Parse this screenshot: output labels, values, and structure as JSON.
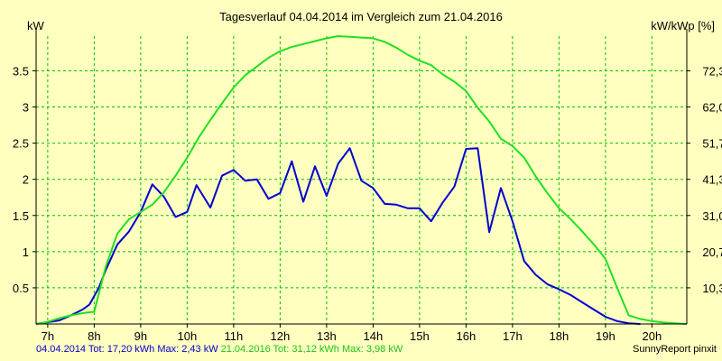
{
  "chart_data": {
    "type": "line",
    "title": "Tagesverlauf 04.04.2014 im Vergleich zum 21.04.2016",
    "ylabel_left": "kW",
    "ylabel_right": "kW/kWp [%]",
    "x_ticks": [
      "7h",
      "8h",
      "9h",
      "10h",
      "11h",
      "12h",
      "13h",
      "14h",
      "15h",
      "16h",
      "17h",
      "18h",
      "19h",
      "20h"
    ],
    "x_tick_values": [
      7,
      8,
      9,
      10,
      11,
      12,
      13,
      14,
      15,
      16,
      17,
      18,
      19,
      20
    ],
    "xlim": [
      6.75,
      20.75
    ],
    "y_left_ticks": [
      "0.5",
      "1",
      "1.5",
      "2",
      "2.5",
      "3",
      "3.5"
    ],
    "y_left_tick_values": [
      0.5,
      1,
      1.5,
      2,
      2.5,
      3,
      3.5
    ],
    "ylim": [
      0,
      3.98
    ],
    "y_right_ticks": [
      "10,3",
      "20,7",
      "31,0",
      "41,3",
      "51,7",
      "62,0",
      "72,3"
    ],
    "grid": true,
    "colors": {
      "background": "#FFFFC0",
      "grid": "#00C000",
      "series_2014": "#0000D0",
      "series_2016": "#20E020"
    },
    "series": [
      {
        "name": "04.04.2014",
        "color": "#0000D0",
        "points": [
          [
            6.75,
            0
          ],
          [
            7.25,
            0.05
          ],
          [
            7.5,
            0.12
          ],
          [
            7.75,
            0.2
          ],
          [
            7.9,
            0.27
          ],
          [
            8.1,
            0.5
          ],
          [
            8.25,
            0.75
          ],
          [
            8.5,
            1.1
          ],
          [
            8.75,
            1.28
          ],
          [
            9.0,
            1.55
          ],
          [
            9.25,
            1.93
          ],
          [
            9.5,
            1.76
          ],
          [
            9.75,
            1.48
          ],
          [
            10.0,
            1.55
          ],
          [
            10.2,
            1.92
          ],
          [
            10.5,
            1.61
          ],
          [
            10.75,
            2.05
          ],
          [
            11.0,
            2.13
          ],
          [
            11.25,
            1.98
          ],
          [
            11.5,
            2.0
          ],
          [
            11.75,
            1.73
          ],
          [
            12.0,
            1.81
          ],
          [
            12.25,
            2.25
          ],
          [
            12.5,
            1.69
          ],
          [
            12.75,
            2.18
          ],
          [
            13.0,
            1.77
          ],
          [
            13.25,
            2.22
          ],
          [
            13.5,
            2.43
          ],
          [
            13.75,
            1.98
          ],
          [
            14.0,
            1.88
          ],
          [
            14.25,
            1.66
          ],
          [
            14.5,
            1.65
          ],
          [
            14.75,
            1.6
          ],
          [
            15.0,
            1.6
          ],
          [
            15.25,
            1.42
          ],
          [
            15.5,
            1.68
          ],
          [
            15.75,
            1.9
          ],
          [
            16.0,
            2.42
          ],
          [
            16.25,
            2.43
          ],
          [
            16.5,
            1.27
          ],
          [
            16.75,
            1.88
          ],
          [
            17.0,
            1.42
          ],
          [
            17.25,
            0.87
          ],
          [
            17.5,
            0.68
          ],
          [
            17.75,
            0.55
          ],
          [
            18.0,
            0.48
          ],
          [
            18.25,
            0.4
          ],
          [
            18.5,
            0.3
          ],
          [
            18.75,
            0.2
          ],
          [
            19.0,
            0.1
          ],
          [
            19.25,
            0.04
          ],
          [
            19.5,
            0.01
          ],
          [
            19.75,
            0
          ]
        ]
      },
      {
        "name": "21.04.2016",
        "color": "#20E020",
        "points": [
          [
            6.75,
            0
          ],
          [
            7.0,
            0.03
          ],
          [
            7.25,
            0.08
          ],
          [
            7.5,
            0.12
          ],
          [
            7.75,
            0.15
          ],
          [
            8.0,
            0.17
          ],
          [
            8.25,
            0.8
          ],
          [
            8.5,
            1.25
          ],
          [
            8.75,
            1.45
          ],
          [
            9.0,
            1.55
          ],
          [
            9.25,
            1.65
          ],
          [
            9.5,
            1.82
          ],
          [
            9.75,
            2.05
          ],
          [
            10.0,
            2.3
          ],
          [
            10.25,
            2.58
          ],
          [
            10.5,
            2.82
          ],
          [
            10.75,
            3.05
          ],
          [
            11.0,
            3.27
          ],
          [
            11.25,
            3.44
          ],
          [
            11.5,
            3.56
          ],
          [
            11.75,
            3.68
          ],
          [
            12.0,
            3.77
          ],
          [
            12.25,
            3.83
          ],
          [
            12.5,
            3.87
          ],
          [
            12.75,
            3.91
          ],
          [
            13.0,
            3.95
          ],
          [
            13.25,
            3.98
          ],
          [
            13.5,
            3.97
          ],
          [
            13.75,
            3.96
          ],
          [
            14.0,
            3.95
          ],
          [
            14.25,
            3.9
          ],
          [
            14.5,
            3.82
          ],
          [
            14.75,
            3.72
          ],
          [
            15.0,
            3.64
          ],
          [
            15.25,
            3.58
          ],
          [
            15.5,
            3.45
          ],
          [
            15.75,
            3.35
          ],
          [
            16.0,
            3.22
          ],
          [
            16.25,
            2.99
          ],
          [
            16.5,
            2.8
          ],
          [
            16.75,
            2.56
          ],
          [
            17.0,
            2.46
          ],
          [
            17.25,
            2.3
          ],
          [
            17.5,
            2.04
          ],
          [
            17.75,
            1.81
          ],
          [
            18.0,
            1.6
          ],
          [
            18.25,
            1.45
          ],
          [
            18.5,
            1.28
          ],
          [
            18.75,
            1.1
          ],
          [
            19.0,
            0.9
          ],
          [
            19.25,
            0.5
          ],
          [
            19.5,
            0.12
          ],
          [
            19.75,
            0.07
          ],
          [
            20.0,
            0.04
          ],
          [
            20.25,
            0.02
          ],
          [
            20.5,
            0.01
          ],
          [
            20.75,
            0
          ]
        ]
      }
    ]
  },
  "footer": {
    "series1_stats": "04.04.2014 Tot: 17,20 kWh Max: 2,43 kW",
    "series2_stats": "21.04.2016 Tot: 31,12 kWh Max: 3,98 kW",
    "brand": "SunnyReport pinxit"
  }
}
